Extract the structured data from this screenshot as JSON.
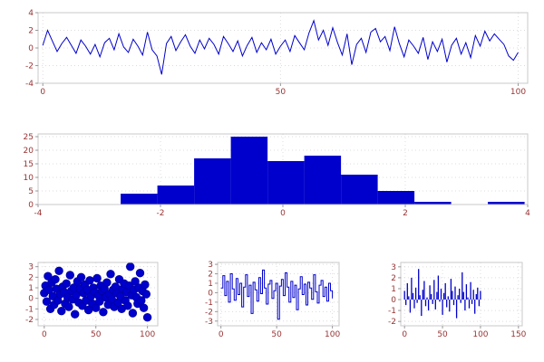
{
  "figure": {
    "background": "#ffffff"
  },
  "style": {
    "accent": "#0000cc",
    "tick_color": "#993333",
    "grid_color": "#dcdcdc",
    "frame_color": "#c8c8c8",
    "tick_mark_color": "#999999"
  },
  "chart_data": [
    {
      "type": "line",
      "title": "",
      "xlabel": "",
      "ylabel": "",
      "color": "#0000cc",
      "xlim": [
        -1,
        102
      ],
      "ylim": [
        -4,
        4
      ],
      "xticks": [
        0,
        50,
        100
      ],
      "yticks": [
        -4,
        -2,
        0,
        2,
        4
      ],
      "x_range": [
        0,
        100
      ],
      "values": [
        0.3,
        2.0,
        0.8,
        -0.4,
        0.5,
        1.2,
        0.3,
        -0.6,
        0.9,
        0.2,
        -0.7,
        0.4,
        -1.0,
        0.6,
        1.1,
        -0.2,
        1.6,
        0.1,
        -0.5,
        1.0,
        0.2,
        -0.8,
        1.8,
        -0.2,
        -0.9,
        -3.0,
        0.5,
        1.3,
        -0.3,
        0.7,
        1.5,
        0.2,
        -0.6,
        0.9,
        -0.1,
        1.1,
        0.4,
        -0.7,
        1.3,
        0.5,
        -0.4,
        0.8,
        -0.9,
        0.3,
        1.2,
        -0.5,
        0.6,
        -0.2,
        1.0,
        -0.7,
        0.2,
        0.9,
        -0.4,
        1.4,
        0.6,
        -0.2,
        1.7,
        3.1,
        0.9,
        2.0,
        0.3,
        2.3,
        0.6,
        -0.8,
        1.6,
        -1.9,
        0.4,
        1.1,
        -0.5,
        1.8,
        2.2,
        0.7,
        1.3,
        -0.3,
        2.4,
        0.5,
        -1.0,
        0.9,
        0.2,
        -0.6,
        1.2,
        -1.3,
        0.7,
        -0.4,
        1.0,
        -1.6,
        0.3,
        1.1,
        -0.7,
        0.6,
        -1.1,
        1.4,
        0.2,
        1.9,
        0.8,
        1.6,
        1.0,
        0.4,
        -0.9,
        -1.4,
        -0.5
      ]
    },
    {
      "type": "histogram",
      "title": "",
      "xlabel": "",
      "ylabel": "",
      "color": "#0000cc",
      "xlim": [
        -4,
        4
      ],
      "ylim": [
        0,
        26
      ],
      "xticks": [
        -4,
        -2,
        0,
        2,
        4
      ],
      "yticks": [
        0,
        5,
        10,
        15,
        20,
        25
      ],
      "bin_edges": [
        -2.65,
        -2.05,
        -1.45,
        -0.85,
        -0.25,
        0.35,
        0.95,
        1.55,
        2.15,
        2.75,
        3.35,
        3.95
      ],
      "counts": [
        4,
        7,
        17,
        25,
        16,
        18,
        11,
        5,
        1,
        0,
        1
      ]
    },
    {
      "type": "scatter",
      "title": "",
      "xlabel": "",
      "ylabel": "",
      "color": "#0000cc",
      "edge_color": "#0000a0",
      "xlim": [
        -6,
        110
      ],
      "ylim": [
        -2.6,
        3.4
      ],
      "xticks": [
        0,
        50,
        100
      ],
      "yticks": [
        -2,
        -1,
        0,
        1,
        2,
        3
      ],
      "x_range": [
        0,
        100
      ],
      "values": [
        0.5,
        1.2,
        -0.3,
        2.1,
        0.8,
        -1.0,
        1.5,
        0.2,
        -0.6,
        1.8,
        0.9,
        -0.2,
        2.6,
        0.4,
        -1.2,
        1.1,
        0.6,
        -0.5,
        1.4,
        0.1,
        -0.8,
        2.2,
        0.7,
        -0.1,
        1.0,
        -1.5,
        0.3,
        1.6,
        -0.4,
        0.9,
        2.0,
        -0.7,
        0.5,
        1.3,
        -0.2,
        0.8,
        -1.1,
        1.7,
        0.2,
        -0.5,
        1.0,
        0.6,
        -0.9,
        1.9,
        0.3,
        -0.3,
        1.2,
        0.7,
        -1.3,
        0.9,
        0.1,
        1.5,
        -0.6,
        0.4,
        2.3,
        -0.1,
        0.8,
        -0.8,
        1.1,
        0.5,
        -0.4,
        1.8,
        0.2,
        -1.0,
        0.9,
        1.4,
        -0.2,
        0.6,
        -0.7,
        1.2,
        3.0,
        0.3,
        -1.4,
        0.8,
        1.6,
        0.1,
        -0.5,
        1.0,
        2.4,
        -0.2,
        0.7,
        -0.9,
        1.3,
        0.4,
        -1.8
      ]
    },
    {
      "type": "step",
      "title": "",
      "xlabel": "",
      "ylabel": "",
      "color": "#0000cc",
      "xlim": [
        -3,
        106
      ],
      "ylim": [
        -3.5,
        3.2
      ],
      "xticks": [
        0,
        50,
        100
      ],
      "yticks": [
        -3,
        -2,
        -1,
        0,
        1,
        2,
        3
      ],
      "x_range": [
        0,
        100
      ],
      "values": [
        0.5,
        1.8,
        -0.3,
        1.2,
        -1.0,
        2.0,
        0.4,
        -0.8,
        1.5,
        -0.2,
        1.0,
        -1.5,
        0.6,
        1.9,
        -0.4,
        0.8,
        -2.2,
        1.1,
        0.3,
        -0.9,
        1.6,
        -0.1,
        2.4,
        0.5,
        -1.2,
        0.9,
        1.3,
        -0.6,
        0.2,
        1.0,
        -2.8,
        0.7,
        1.4,
        -0.3,
        2.1,
        0.6,
        -1.0,
        1.2,
        -0.5,
        0.8,
        -1.8,
        0.4,
        1.7,
        -0.2,
        0.9,
        -1.3,
        1.1,
        0.5,
        -0.7,
        1.9,
        0.1,
        -1.1,
        0.8,
        1.3,
        -0.4,
        0.6,
        -0.9,
        1.0,
        0.2,
        -0.6
      ]
    },
    {
      "type": "stem",
      "title": "",
      "xlabel": "",
      "ylabel": "",
      "color": "#0000cc",
      "xlim": [
        -5,
        155
      ],
      "ylim": [
        -2.4,
        3.4
      ],
      "xticks": [
        0,
        50,
        100,
        150
      ],
      "yticks": [
        -2,
        -1,
        0,
        1,
        2,
        3
      ],
      "x_range": [
        0,
        100
      ],
      "values": [
        0.8,
        -0.5,
        1.5,
        0.3,
        -1.2,
        2.0,
        0.6,
        -0.8,
        1.1,
        -0.3,
        2.8,
        0.4,
        -1.5,
        0.9,
        1.7,
        -0.6,
        0.2,
        -1.0,
        1.3,
        0.5,
        -0.4,
        1.8,
        -0.9,
        0.7,
        2.2,
        -0.2,
        1.0,
        -1.4,
        0.6,
        1.5,
        -0.7,
        0.3,
        -1.1,
        1.9,
        0.8,
        -0.5,
        1.2,
        -1.7,
        0.4,
        1.0,
        -0.3,
        2.5,
        0.7,
        -1.0,
        1.4,
        0.2,
        -0.8,
        1.6,
        -0.4,
        0.9,
        -1.3,
        0.5,
        1.1,
        -0.6,
        0.8
      ]
    }
  ]
}
